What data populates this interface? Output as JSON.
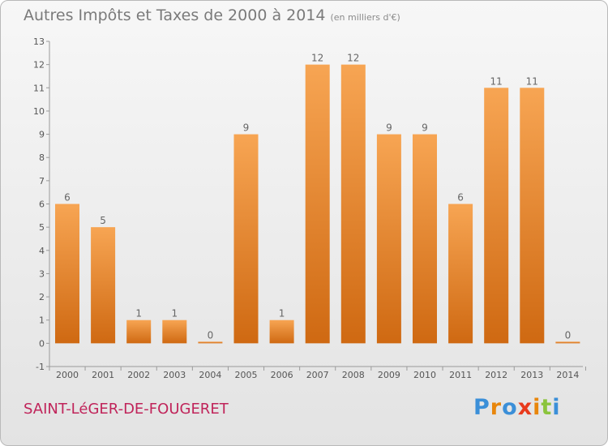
{
  "header": {
    "title": "Autres Impôts et Taxes de 2000 à 2014",
    "unit": "(en milliers d'€)"
  },
  "footer": {
    "commune": "SAINT-LéGER-DE-FOUGERET",
    "logo_text": "Proxiti"
  },
  "colors": {
    "bar_light": "#f7a553",
    "bar_dark": "#cf6912",
    "title": "#7a7a7a",
    "commune": "#c0245a",
    "logo": [
      "#3b8fd8",
      "#e8860c",
      "#3b8fd8",
      "#e83a1c",
      "#e8860c",
      "#8bc43d",
      "#3b8fd8"
    ]
  },
  "chart_data": {
    "type": "bar",
    "title": "Autres Impôts et Taxes de 2000 à 2014",
    "subtitle": "(en milliers d'€)",
    "categories": [
      "2000",
      "2001",
      "2002",
      "2003",
      "2004",
      "2005",
      "2006",
      "2007",
      "2008",
      "2009",
      "2010",
      "2011",
      "2012",
      "2013",
      "2014"
    ],
    "values": [
      6,
      5,
      1,
      1,
      0,
      9,
      1,
      12,
      12,
      9,
      9,
      6,
      11,
      11,
      0
    ],
    "ylim": [
      -1,
      13
    ],
    "yticks": [
      -1,
      0,
      1,
      2,
      3,
      4,
      5,
      6,
      7,
      8,
      9,
      10,
      11,
      12,
      13
    ],
    "grid": false,
    "data_labels": true,
    "legend": "none"
  }
}
